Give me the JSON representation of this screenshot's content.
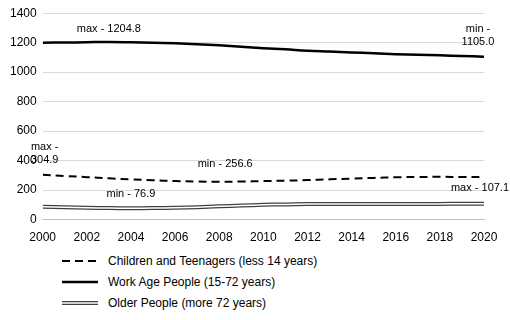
{
  "chart_data": {
    "type": "line",
    "x": [
      2000,
      2001,
      2002,
      2003,
      2004,
      2005,
      2006,
      2007,
      2008,
      2009,
      2010,
      2011,
      2012,
      2013,
      2014,
      2015,
      2016,
      2017,
      2018,
      2019,
      2020
    ],
    "xlim": [
      2000,
      2020
    ],
    "xticks": [
      2000,
      2002,
      2004,
      2006,
      2008,
      2010,
      2012,
      2014,
      2016,
      2018,
      2020
    ],
    "ylim": [
      0,
      1400
    ],
    "yticks": [
      0,
      200,
      400,
      600,
      800,
      1000,
      1200,
      1400
    ],
    "grid": true,
    "legend": "bottom",
    "series": [
      {
        "name": "Children and Teenagers (less 14 years)",
        "color": "#000000",
        "line_style": "dashed",
        "values": [
          304.9,
          296,
          288,
          280,
          273,
          267,
          262,
          258,
          256.6,
          258,
          261,
          264,
          268,
          273,
          278,
          283,
          287,
          289,
          290,
          289,
          288
        ]
      },
      {
        "name": "Work Age People (15-72 years)",
        "color": "#000000",
        "line_style": "solid",
        "values": [
          1200,
          1201,
          1203,
          1204.8,
          1203,
          1200,
          1196,
          1190,
          1182,
          1172,
          1163,
          1155,
          1146,
          1140,
          1134,
          1128,
          1122,
          1118,
          1114,
          1110,
          1105.0
        ]
      },
      {
        "name": "Older People (more 72 years)",
        "color": "#404040",
        "line_style": "double",
        "values": [
          87,
          84,
          81,
          78,
          76.9,
          78,
          80,
          84,
          90,
          95,
          100,
          103,
          105,
          106,
          106,
          106,
          106,
          106,
          106.5,
          107,
          107.1
        ]
      }
    ],
    "annotations": [
      {
        "text": "max - 1204.8",
        "series": "Work Age People (15-72 years)",
        "x": 2003
      },
      {
        "text": "min - 1105.0",
        "series": "Work Age People (15-72 years)",
        "x": 2020
      },
      {
        "text": "max - 304.9",
        "series": "Children and Teenagers (less 14 years)",
        "x": 2000
      },
      {
        "text": "min - 256.6",
        "series": "Children and Teenagers (less 14 years)",
        "x": 2008
      },
      {
        "text": "min - 76.9",
        "series": "Older People (more 72 years)",
        "x": 2004
      },
      {
        "text": "max - 107.1",
        "series": "Older People (more 72 years)",
        "x": 2020
      }
    ]
  }
}
